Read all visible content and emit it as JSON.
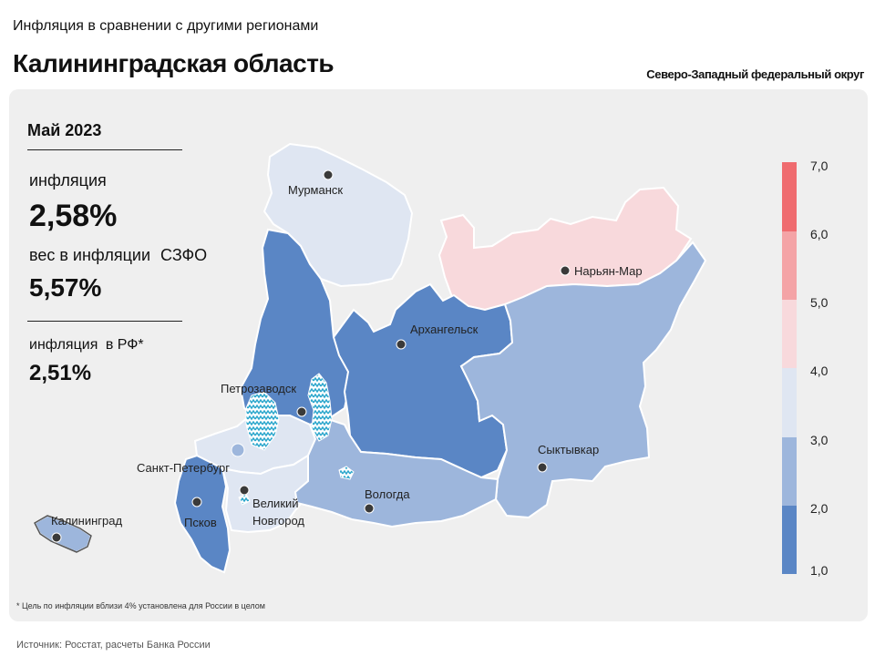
{
  "header": {
    "subtitle": "Инфляция в сравнении с другими регионами",
    "title": "Калининградская область",
    "district": "Северо-Западный федеральный округ"
  },
  "stats": {
    "period": "Май 2023",
    "inflation_label": "инфляция",
    "inflation_value": "2,58%",
    "weight_label": "вес в инфляции",
    "weight_suffix": "СЗФО",
    "weight_value": "5,57%",
    "rf_label": "инфляция",
    "rf_suffix": "в РФ*",
    "rf_value": "2,51%"
  },
  "cities": {
    "murmansk": "Мурманск",
    "naryan_mar": "Нарьян-Мар",
    "arkhangelsk": "Архангельск",
    "petrozavodsk": "Петрозаводск",
    "spb": "Санкт-Петербург",
    "syktyvkar": "Сыктывкар",
    "vnovgorod_1": "Великий",
    "vnovgorod_2": "Новгород",
    "pskov": "Псков",
    "vologda": "Вологда",
    "kaliningrad": "Калининград"
  },
  "legend": {
    "ticks": [
      "7,0",
      "6,0",
      "5,0",
      "4,0",
      "3,0",
      "2,0",
      "1,0"
    ],
    "colors": [
      "#ef6b6f",
      "#f4a3a6",
      "#f8d9dc",
      "#dfe6f2",
      "#9db6dc",
      "#5a86c5"
    ]
  },
  "footnote": "* Цель по инфляции вблизи 4% установлена для России в целом",
  "source": "Источник: Росстат, расчеты Банка России"
}
